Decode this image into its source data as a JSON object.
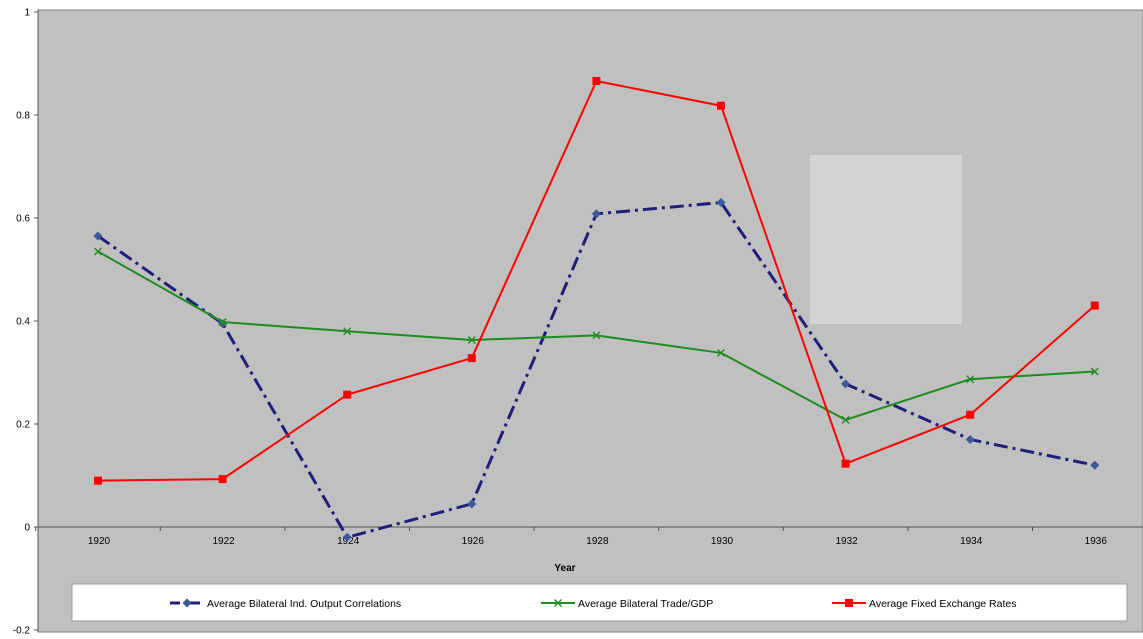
{
  "chart_data": {
    "type": "line",
    "title": "",
    "xlabel": "Year",
    "ylabel": "",
    "categories": [
      "1920",
      "1922",
      "1924",
      "1926",
      "1928",
      "1930",
      "1932",
      "1934",
      "1936"
    ],
    "y_ticks": [
      "1",
      "0.8",
      "0.6",
      "0.4",
      "0.2",
      "0",
      "-0.2"
    ],
    "ylim": [
      -0.2,
      1
    ],
    "grid": false,
    "legend_position": "bottom",
    "plot_background": "#c0c0c0",
    "series": [
      {
        "name": "Average Bilateral Ind. Output Correlations",
        "color": "#1f1f7a",
        "marker": "diamond",
        "line_style": "dash-dot",
        "values": [
          0.565,
          0.395,
          -0.02,
          0.045,
          0.608,
          0.63,
          0.278,
          0.17,
          0.12
        ]
      },
      {
        "name": "Average Bilateral Trade/GDP",
        "color": "#1e8c1e",
        "marker": "x",
        "line_style": "solid",
        "values": [
          0.535,
          0.398,
          0.38,
          0.363,
          0.372,
          0.338,
          0.208,
          0.287,
          0.302
        ]
      },
      {
        "name": "Average Fixed Exchange Rates",
        "color": "#ff0000",
        "marker": "square",
        "line_style": "solid",
        "values": [
          0.09,
          0.093,
          0.257,
          0.328,
          0.866,
          0.818,
          0.123,
          0.218,
          0.43
        ]
      }
    ]
  }
}
